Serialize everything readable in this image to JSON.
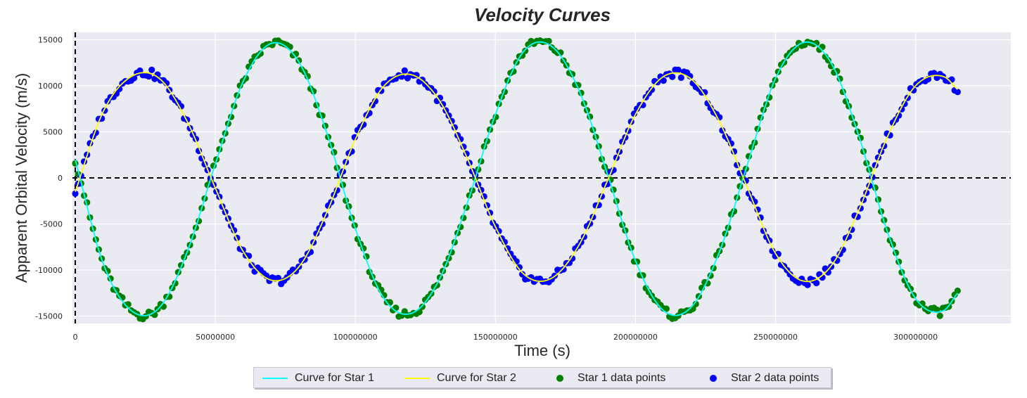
{
  "chart_data": {
    "type": "line",
    "title": "Velocity Curves",
    "xlabel": "Time (s)",
    "ylabel": "Apparent Orbital Velocity (m/s)",
    "xlim": [
      -1000000,
      334000000
    ],
    "ylim": [
      -15800,
      15800
    ],
    "xticks": [
      0,
      50000000,
      100000000,
      150000000,
      200000000,
      250000000,
      300000000
    ],
    "xtick_labels": [
      "0",
      "50000000",
      "100000000",
      "150000000",
      "200000000",
      "250000000",
      "300000000"
    ],
    "yticks": [
      15000,
      10000,
      5000,
      0,
      -5000,
      -10000,
      -15000
    ],
    "ytick_labels": [
      "15000",
      "10000",
      "5000",
      "0",
      "-5000",
      "-10000",
      "-15000"
    ],
    "grid": true,
    "background": "#eaeaf2",
    "reference_lines": [
      {
        "orientation": "horizontal",
        "value": 0,
        "style": "dashed",
        "color": "#000000"
      },
      {
        "orientation": "vertical",
        "value": 0,
        "style": "dashed",
        "color": "#000000"
      }
    ],
    "x": [
      0,
      10000000,
      20000000,
      30000000,
      40000000,
      50000000,
      60000000,
      70000000,
      80000000,
      90000000,
      100000000,
      110000000,
      120000000,
      130000000,
      140000000,
      150000000,
      160000000,
      170000000,
      180000000,
      190000000,
      200000000,
      210000000,
      220000000,
      230000000,
      240000000,
      250000000,
      260000000,
      270000000,
      280000000,
      290000000,
      300000000,
      310000000,
      315000000
    ],
    "series": [
      {
        "name": "Curve for Star 1",
        "kind": "line",
        "color": "#00ffff",
        "values": [
          2000,
          -9300,
          -14400,
          -14100,
          -8000,
          1500,
          10500,
          14600,
          12500,
          4700,
          -5500,
          -13000,
          -14700,
          -11000,
          -2700,
          6900,
          13700,
          14300,
          9400,
          400,
          -9000,
          -14400,
          -14000,
          -8000,
          1500,
          10800,
          14700,
          12400,
          4300,
          -5900,
          -13100,
          -14400,
          -12500
        ]
      },
      {
        "name": "Curve for Star 2",
        "kind": "line",
        "color": "#ffff00",
        "values": [
          -1500,
          7200,
          11000,
          10800,
          6100,
          -1100,
          -8000,
          -11100,
          -9600,
          -3600,
          4200,
          9900,
          11200,
          8400,
          2100,
          -5300,
          -10400,
          -10900,
          -7200,
          -300,
          6900,
          11000,
          10700,
          6100,
          -1100,
          -8200,
          -11200,
          -9500,
          -3300,
          4500,
          10000,
          11000,
          9600
        ]
      },
      {
        "name": "Star 1 data points",
        "kind": "scatter",
        "color": "#008000",
        "values": [
          2000,
          -9300,
          -14400,
          -14100,
          -8000,
          1500,
          10500,
          14600,
          12500,
          4700,
          -5500,
          -13000,
          -14700,
          -11000,
          -2700,
          6900,
          13700,
          14300,
          9400,
          400,
          -9000,
          -14400,
          -14000,
          -8000,
          1500,
          10800,
          14700,
          12400,
          4300,
          -5900,
          -13100,
          -14400,
          -12500
        ]
      },
      {
        "name": "Star 2 data points",
        "kind": "scatter",
        "color": "#0000ff",
        "values": [
          -1500,
          7200,
          11000,
          10800,
          6100,
          -1100,
          -8000,
          -11100,
          -9600,
          -3600,
          4200,
          9900,
          11200,
          8400,
          2100,
          -5300,
          -10400,
          -10900,
          -7200,
          -300,
          6900,
          11000,
          10700,
          6100,
          -1100,
          -8200,
          -11200,
          -9500,
          -3300,
          4500,
          10000,
          11000,
          9600
        ]
      }
    ],
    "legend_position": "bottom-center"
  }
}
